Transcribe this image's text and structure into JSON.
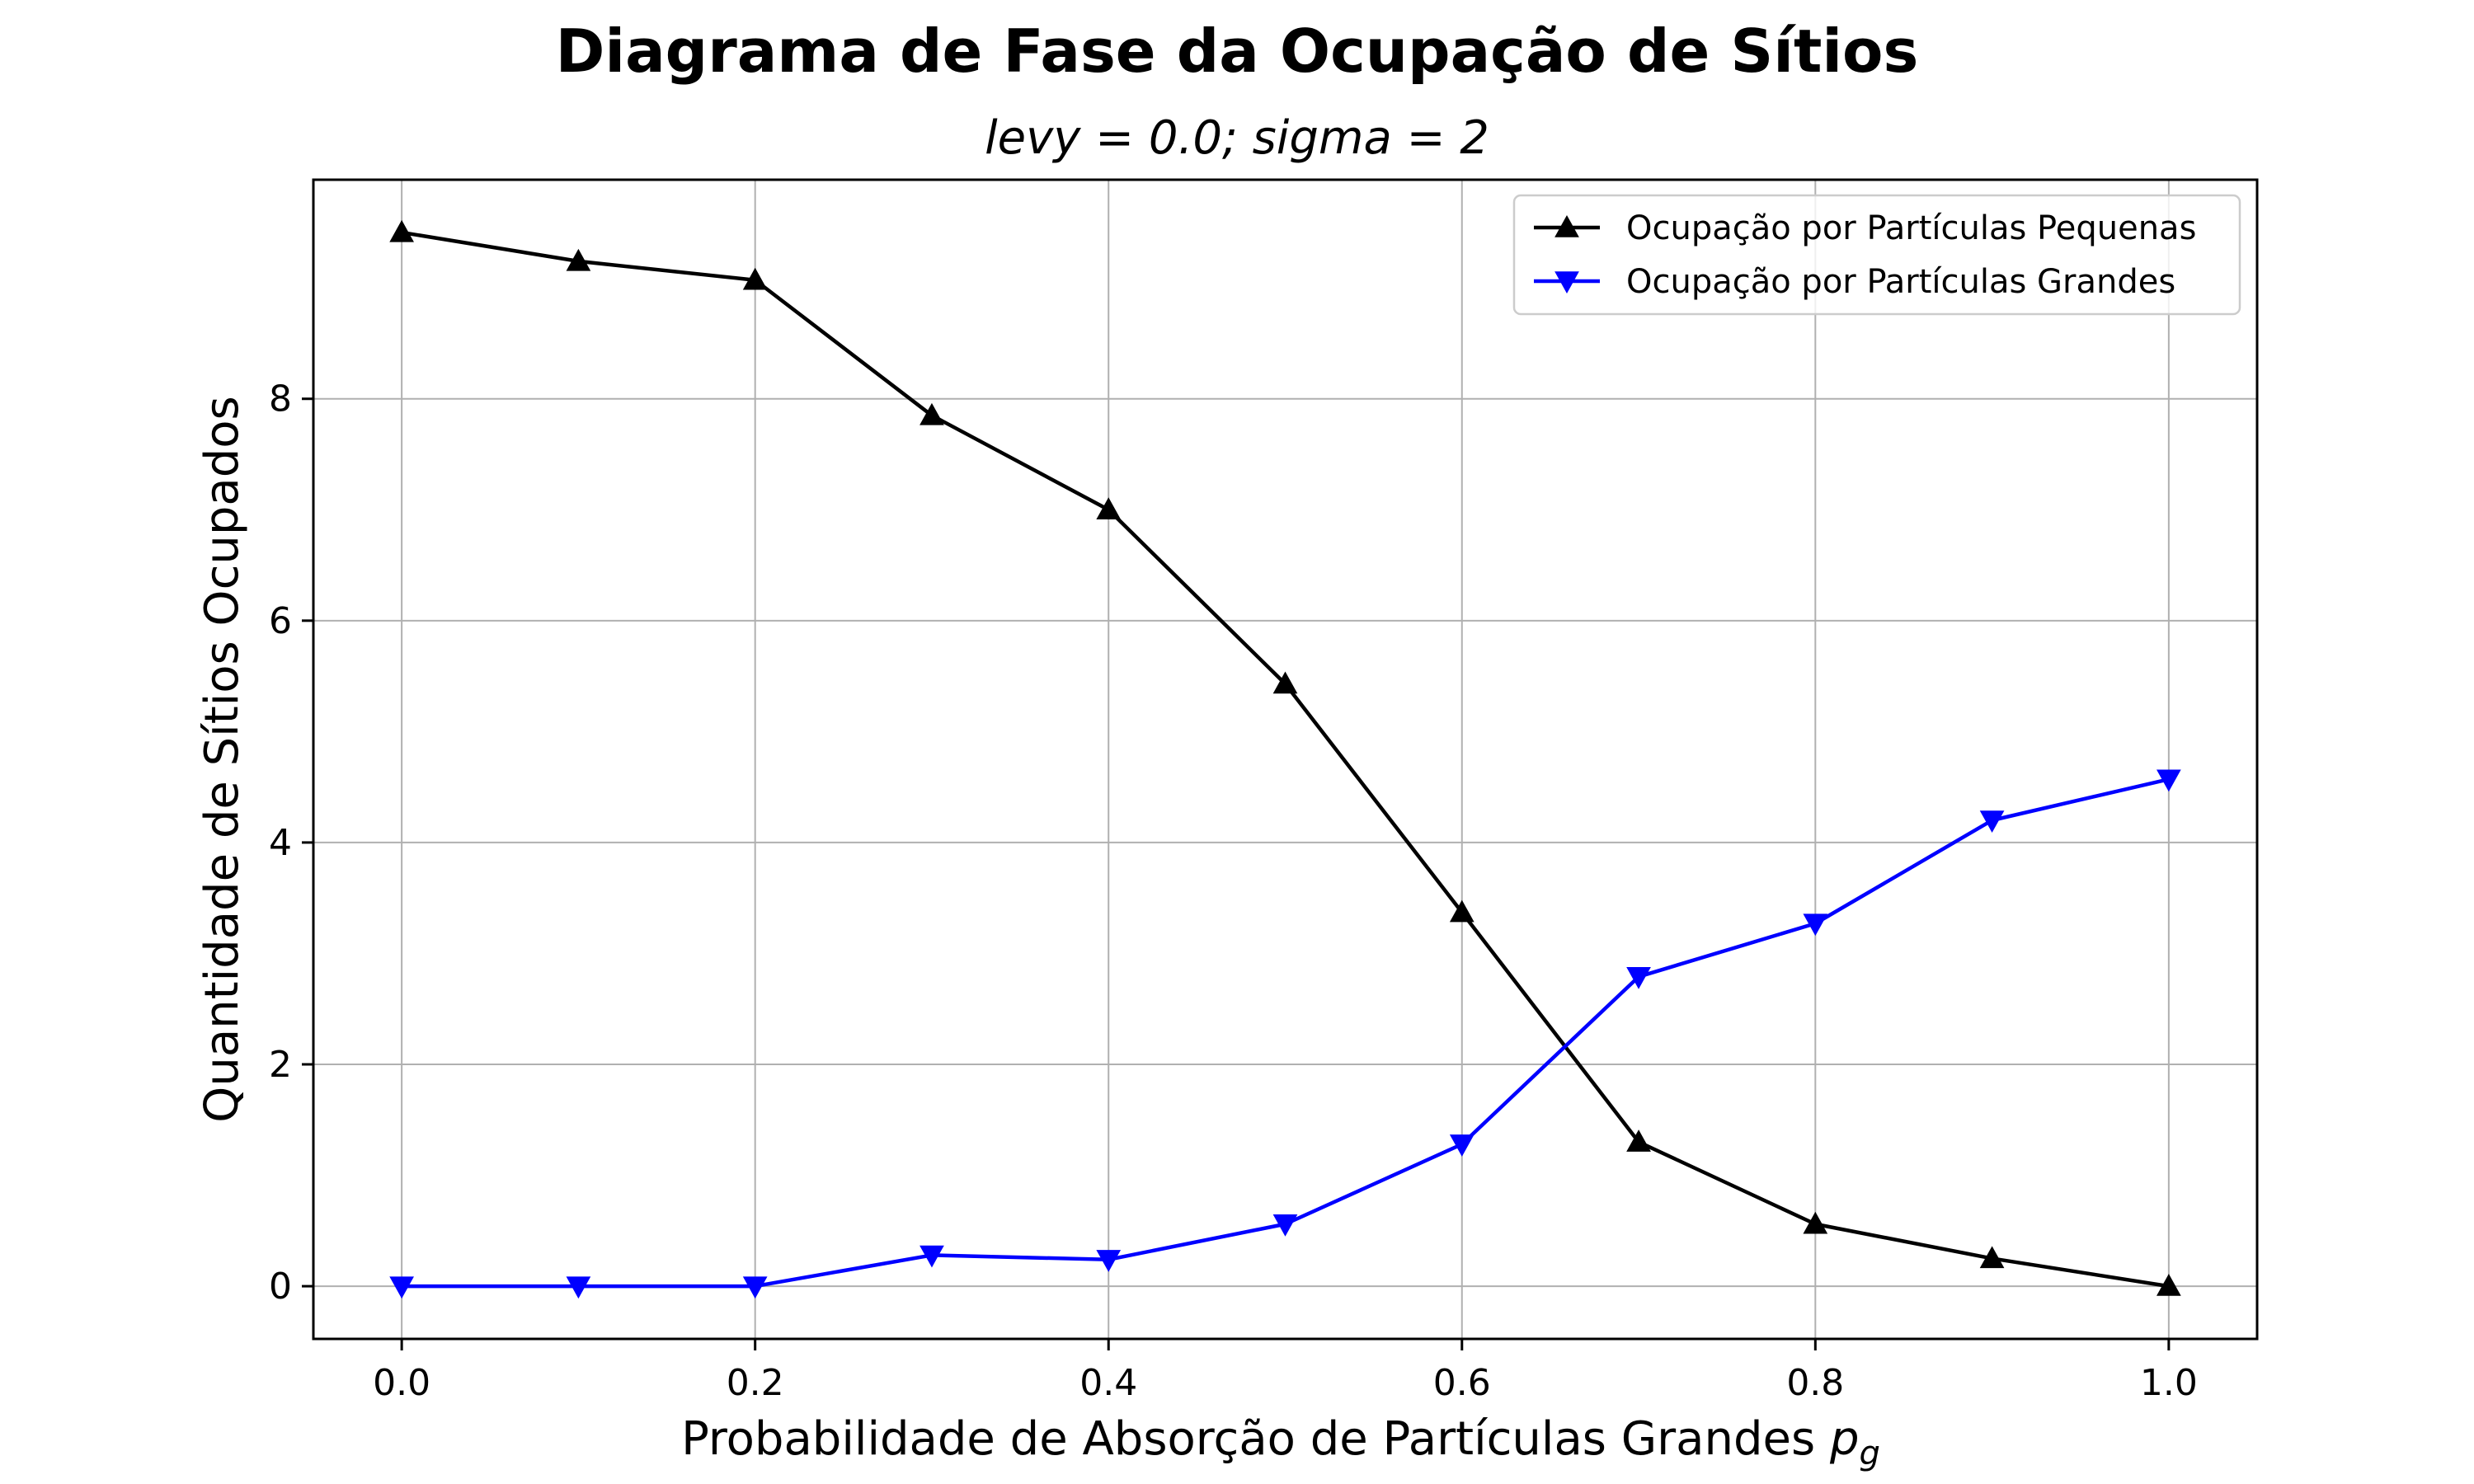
{
  "chart_data": {
    "type": "line",
    "title": "Diagrama de Fase da Ocupação de Sítios",
    "subtitle": "levy = 0.0; sigma = 2",
    "xlabel": "Probabilidade de Absorção de Partículas Grandes",
    "xlabel_symbol": "p",
    "xlabel_subscript": "g",
    "ylabel": "Quantidade de Sítios Ocupados",
    "x": [
      0.0,
      0.1,
      0.2,
      0.3,
      0.4,
      0.5,
      0.6,
      0.7,
      0.8,
      0.9,
      1.0
    ],
    "xlim": [
      -0.05,
      1.05
    ],
    "ylim": [
      -0.475,
      9.975
    ],
    "xticks": [
      "0.0",
      "0.2",
      "0.4",
      "0.6",
      "0.8",
      "1.0"
    ],
    "yticks": [
      "0",
      "2",
      "4",
      "6",
      "8"
    ],
    "grid": true,
    "legend_position": "top-right",
    "series": [
      {
        "name": "Ocupação por Partículas Pequenas",
        "color": "#000000",
        "marker": "triangle-up",
        "values": [
          9.5,
          9.24,
          9.07,
          7.85,
          7.0,
          5.43,
          3.37,
          1.3,
          0.56,
          0.25,
          0.0
        ]
      },
      {
        "name": "Ocupação por Partículas Grandes",
        "color": "#0000ff",
        "marker": "triangle-down",
        "values": [
          0.0,
          0.0,
          0.0,
          0.28,
          0.24,
          0.56,
          1.28,
          2.79,
          3.27,
          4.2,
          4.57
        ]
      }
    ]
  }
}
